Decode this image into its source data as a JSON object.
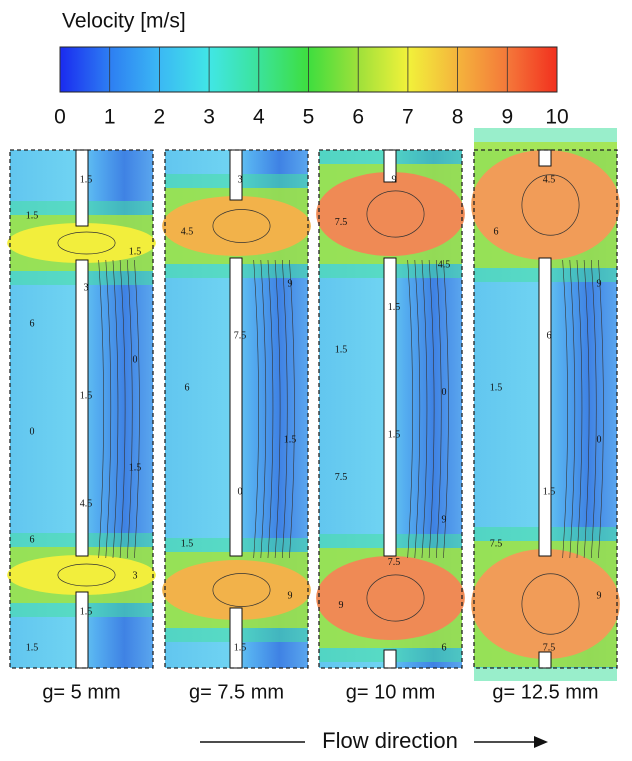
{
  "chart_data": {
    "type": "contour",
    "colorbar": {
      "title": "Velocity [m/s]",
      "lim": [
        0,
        10
      ],
      "ticks": [
        0,
        1,
        2,
        3,
        4,
        5,
        6,
        7,
        8,
        9,
        10
      ],
      "colors": [
        "#1a2bf0",
        "#2d7ef2",
        "#3bb8f4",
        "#41e6e6",
        "#3be39a",
        "#3ede3e",
        "#9ee03a",
        "#f2f23a",
        "#f4b43c",
        "#f4783a",
        "#f2301e"
      ]
    },
    "panels": [
      {
        "label": "g= 5 mm",
        "contour_labels": [
          "1.5",
          "1.5",
          "1.5",
          "3",
          "6",
          "0",
          "1.5",
          "0",
          "1.5",
          "4.5",
          "6",
          "3",
          "1.5",
          "1.5"
        ]
      },
      {
        "label": "g= 7.5 mm",
        "contour_labels": [
          "3",
          "4.5",
          "9",
          "7.5",
          "6",
          "1.5",
          "0",
          "1.5",
          "9",
          "1.5"
        ]
      },
      {
        "label": "g= 10 mm",
        "contour_labels": [
          "9",
          "7.5",
          "4.5",
          "1.5",
          "1.5",
          "0",
          "1.5",
          "7.5",
          "9",
          "7.5",
          "9",
          "6"
        ]
      },
      {
        "label": "g= 12.5 mm",
        "contour_labels": [
          "4.5",
          "6",
          "9",
          "6",
          "1.5",
          "0",
          "1.5",
          "7.5",
          "9",
          "7.5"
        ]
      }
    ],
    "xlabel": "Flow direction"
  }
}
